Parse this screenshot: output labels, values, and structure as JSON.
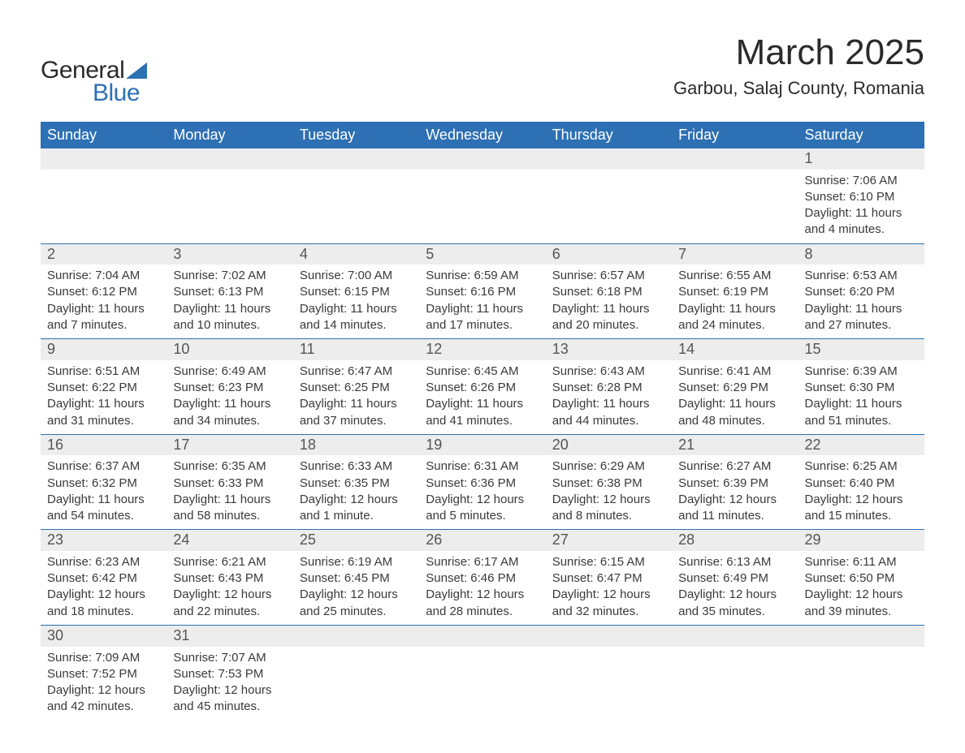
{
  "logo": {
    "general": "General",
    "blue": "Blue"
  },
  "header": {
    "month_title": "March 2025",
    "location": "Garbou, Salaj County, Romania"
  },
  "colors": {
    "header_bg": "#2d70b3",
    "header_text": "#ffffff",
    "daynum_bg": "#ededed",
    "row_divider": "#2d70b3",
    "body_text": "#3a3a3a",
    "logo_blue": "#2d70b3"
  },
  "typography": {
    "month_title_fontsize": 44,
    "location_fontsize": 22,
    "dow_fontsize": 18,
    "daynum_fontsize": 18,
    "cell_fontsize": 15
  },
  "days_of_week": [
    "Sunday",
    "Monday",
    "Tuesday",
    "Wednesday",
    "Thursday",
    "Friday",
    "Saturday"
  ],
  "weeks": [
    [
      null,
      null,
      null,
      null,
      null,
      null,
      {
        "n": "1",
        "sunrise": "Sunrise: 7:06 AM",
        "sunset": "Sunset: 6:10 PM",
        "d1": "Daylight: 11 hours",
        "d2": "and 4 minutes."
      }
    ],
    [
      {
        "n": "2",
        "sunrise": "Sunrise: 7:04 AM",
        "sunset": "Sunset: 6:12 PM",
        "d1": "Daylight: 11 hours",
        "d2": "and 7 minutes."
      },
      {
        "n": "3",
        "sunrise": "Sunrise: 7:02 AM",
        "sunset": "Sunset: 6:13 PM",
        "d1": "Daylight: 11 hours",
        "d2": "and 10 minutes."
      },
      {
        "n": "4",
        "sunrise": "Sunrise: 7:00 AM",
        "sunset": "Sunset: 6:15 PM",
        "d1": "Daylight: 11 hours",
        "d2": "and 14 minutes."
      },
      {
        "n": "5",
        "sunrise": "Sunrise: 6:59 AM",
        "sunset": "Sunset: 6:16 PM",
        "d1": "Daylight: 11 hours",
        "d2": "and 17 minutes."
      },
      {
        "n": "6",
        "sunrise": "Sunrise: 6:57 AM",
        "sunset": "Sunset: 6:18 PM",
        "d1": "Daylight: 11 hours",
        "d2": "and 20 minutes."
      },
      {
        "n": "7",
        "sunrise": "Sunrise: 6:55 AM",
        "sunset": "Sunset: 6:19 PM",
        "d1": "Daylight: 11 hours",
        "d2": "and 24 minutes."
      },
      {
        "n": "8",
        "sunrise": "Sunrise: 6:53 AM",
        "sunset": "Sunset: 6:20 PM",
        "d1": "Daylight: 11 hours",
        "d2": "and 27 minutes."
      }
    ],
    [
      {
        "n": "9",
        "sunrise": "Sunrise: 6:51 AM",
        "sunset": "Sunset: 6:22 PM",
        "d1": "Daylight: 11 hours",
        "d2": "and 31 minutes."
      },
      {
        "n": "10",
        "sunrise": "Sunrise: 6:49 AM",
        "sunset": "Sunset: 6:23 PM",
        "d1": "Daylight: 11 hours",
        "d2": "and 34 minutes."
      },
      {
        "n": "11",
        "sunrise": "Sunrise: 6:47 AM",
        "sunset": "Sunset: 6:25 PM",
        "d1": "Daylight: 11 hours",
        "d2": "and 37 minutes."
      },
      {
        "n": "12",
        "sunrise": "Sunrise: 6:45 AM",
        "sunset": "Sunset: 6:26 PM",
        "d1": "Daylight: 11 hours",
        "d2": "and 41 minutes."
      },
      {
        "n": "13",
        "sunrise": "Sunrise: 6:43 AM",
        "sunset": "Sunset: 6:28 PM",
        "d1": "Daylight: 11 hours",
        "d2": "and 44 minutes."
      },
      {
        "n": "14",
        "sunrise": "Sunrise: 6:41 AM",
        "sunset": "Sunset: 6:29 PM",
        "d1": "Daylight: 11 hours",
        "d2": "and 48 minutes."
      },
      {
        "n": "15",
        "sunrise": "Sunrise: 6:39 AM",
        "sunset": "Sunset: 6:30 PM",
        "d1": "Daylight: 11 hours",
        "d2": "and 51 minutes."
      }
    ],
    [
      {
        "n": "16",
        "sunrise": "Sunrise: 6:37 AM",
        "sunset": "Sunset: 6:32 PM",
        "d1": "Daylight: 11 hours",
        "d2": "and 54 minutes."
      },
      {
        "n": "17",
        "sunrise": "Sunrise: 6:35 AM",
        "sunset": "Sunset: 6:33 PM",
        "d1": "Daylight: 11 hours",
        "d2": "and 58 minutes."
      },
      {
        "n": "18",
        "sunrise": "Sunrise: 6:33 AM",
        "sunset": "Sunset: 6:35 PM",
        "d1": "Daylight: 12 hours",
        "d2": "and 1 minute."
      },
      {
        "n": "19",
        "sunrise": "Sunrise: 6:31 AM",
        "sunset": "Sunset: 6:36 PM",
        "d1": "Daylight: 12 hours",
        "d2": "and 5 minutes."
      },
      {
        "n": "20",
        "sunrise": "Sunrise: 6:29 AM",
        "sunset": "Sunset: 6:38 PM",
        "d1": "Daylight: 12 hours",
        "d2": "and 8 minutes."
      },
      {
        "n": "21",
        "sunrise": "Sunrise: 6:27 AM",
        "sunset": "Sunset: 6:39 PM",
        "d1": "Daylight: 12 hours",
        "d2": "and 11 minutes."
      },
      {
        "n": "22",
        "sunrise": "Sunrise: 6:25 AM",
        "sunset": "Sunset: 6:40 PM",
        "d1": "Daylight: 12 hours",
        "d2": "and 15 minutes."
      }
    ],
    [
      {
        "n": "23",
        "sunrise": "Sunrise: 6:23 AM",
        "sunset": "Sunset: 6:42 PM",
        "d1": "Daylight: 12 hours",
        "d2": "and 18 minutes."
      },
      {
        "n": "24",
        "sunrise": "Sunrise: 6:21 AM",
        "sunset": "Sunset: 6:43 PM",
        "d1": "Daylight: 12 hours",
        "d2": "and 22 minutes."
      },
      {
        "n": "25",
        "sunrise": "Sunrise: 6:19 AM",
        "sunset": "Sunset: 6:45 PM",
        "d1": "Daylight: 12 hours",
        "d2": "and 25 minutes."
      },
      {
        "n": "26",
        "sunrise": "Sunrise: 6:17 AM",
        "sunset": "Sunset: 6:46 PM",
        "d1": "Daylight: 12 hours",
        "d2": "and 28 minutes."
      },
      {
        "n": "27",
        "sunrise": "Sunrise: 6:15 AM",
        "sunset": "Sunset: 6:47 PM",
        "d1": "Daylight: 12 hours",
        "d2": "and 32 minutes."
      },
      {
        "n": "28",
        "sunrise": "Sunrise: 6:13 AM",
        "sunset": "Sunset: 6:49 PM",
        "d1": "Daylight: 12 hours",
        "d2": "and 35 minutes."
      },
      {
        "n": "29",
        "sunrise": "Sunrise: 6:11 AM",
        "sunset": "Sunset: 6:50 PM",
        "d1": "Daylight: 12 hours",
        "d2": "and 39 minutes."
      }
    ],
    [
      {
        "n": "30",
        "sunrise": "Sunrise: 7:09 AM",
        "sunset": "Sunset: 7:52 PM",
        "d1": "Daylight: 12 hours",
        "d2": "and 42 minutes."
      },
      {
        "n": "31",
        "sunrise": "Sunrise: 7:07 AM",
        "sunset": "Sunset: 7:53 PM",
        "d1": "Daylight: 12 hours",
        "d2": "and 45 minutes."
      },
      null,
      null,
      null,
      null,
      null
    ]
  ]
}
